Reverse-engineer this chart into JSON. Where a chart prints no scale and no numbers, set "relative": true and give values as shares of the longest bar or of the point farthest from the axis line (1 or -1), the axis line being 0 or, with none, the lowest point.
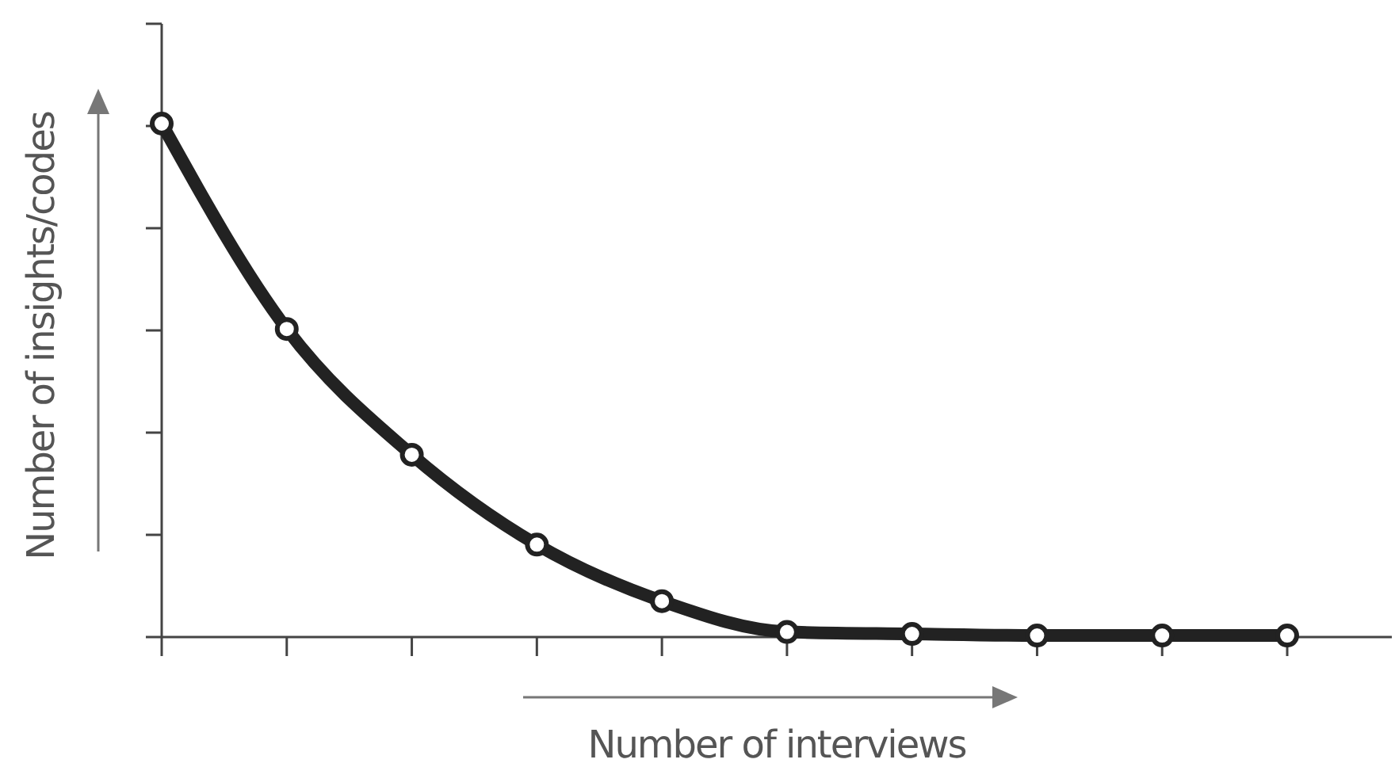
{
  "chart_data": {
    "type": "line",
    "relative": true,
    "xlabel": "Number of interviews",
    "ylabel": "Number of insights/codes",
    "categories": [
      null,
      null,
      null,
      null,
      null,
      null,
      null,
      null,
      null,
      null
    ],
    "series": [
      {
        "color": "#222222",
        "values": [
          1,
          0.6,
          0.355,
          0.18,
          0.07,
          0.01,
          0.006,
          0.003,
          0.003,
          0.003
        ]
      }
    ],
    "marker": "circle",
    "line_style": "solid"
  }
}
